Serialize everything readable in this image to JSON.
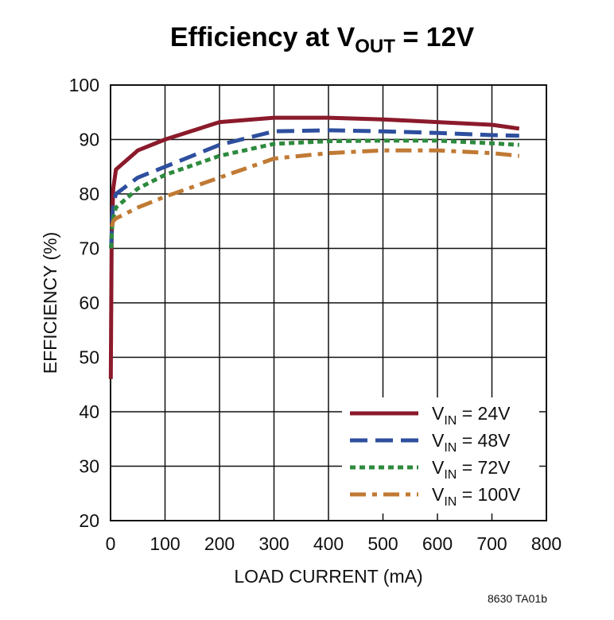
{
  "chart_data": {
    "type": "line",
    "title": {
      "main": "Efficiency at V",
      "sub": "OUT",
      "suffix": " = 12V"
    },
    "xlabel": "LOAD CURRENT (mA)",
    "ylabel": "EFFICIENCY (%)",
    "xlim": [
      0,
      800
    ],
    "ylim": [
      20,
      100
    ],
    "xticks": [
      0,
      100,
      200,
      300,
      400,
      500,
      600,
      700,
      800
    ],
    "yticks": [
      20,
      30,
      40,
      50,
      60,
      70,
      80,
      90,
      100
    ],
    "grid": true,
    "legend_position": "bottom-right",
    "series": [
      {
        "name": "V_IN = 24V",
        "label_main": "V",
        "label_sub": "IN",
        "label_suffix": " = 24V",
        "color": "#8b1a2b",
        "style": "solid",
        "x": [
          0.5,
          2,
          5,
          10,
          50,
          100,
          200,
          300,
          400,
          500,
          600,
          700,
          750
        ],
        "y": [
          46,
          72,
          81,
          84.5,
          88,
          90,
          93.2,
          94,
          94,
          93.7,
          93.2,
          92.7,
          92
        ]
      },
      {
        "name": "V_IN = 48V",
        "label_main": "V",
        "label_sub": "IN",
        "label_suffix": " = 48V",
        "color": "#2e4f9e",
        "style": "dashed",
        "x": [
          1,
          3,
          6,
          10,
          50,
          100,
          200,
          300,
          400,
          500,
          600,
          700,
          750
        ],
        "y": [
          70,
          76,
          78.5,
          80,
          83,
          85,
          89,
          91.5,
          91.7,
          91.5,
          91.2,
          90.8,
          90.7
        ]
      },
      {
        "name": "V_IN = 72V",
        "label_main": "V",
        "label_sub": "IN",
        "label_suffix": " = 72V",
        "color": "#2e8a3e",
        "style": "dotted",
        "x": [
          1,
          3,
          6,
          10,
          50,
          100,
          200,
          300,
          400,
          500,
          600,
          700,
          750
        ],
        "y": [
          70,
          74,
          76,
          77.5,
          81,
          83.5,
          87,
          89.2,
          89.7,
          89.8,
          89.8,
          89.3,
          89
        ]
      },
      {
        "name": "V_IN = 100V",
        "label_main": "V",
        "label_sub": "IN",
        "label_suffix": " = 100V",
        "color": "#c07a34",
        "style": "dashdot",
        "x": [
          2,
          5,
          10,
          50,
          100,
          200,
          300,
          400,
          500,
          600,
          700,
          750
        ],
        "y": [
          74,
          75,
          75.5,
          77.5,
          79.5,
          83,
          86.5,
          87.5,
          88,
          88,
          87.5,
          87
        ]
      }
    ]
  },
  "figure_ref": "8630 TA01b"
}
